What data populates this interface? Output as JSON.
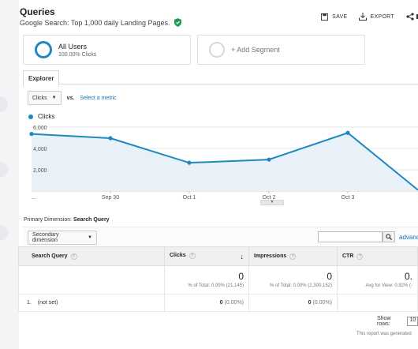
{
  "header": {
    "title": "Queries",
    "subtitle": "Google Search: Top 1,000 daily Landing Pages."
  },
  "toolbar": {
    "save_label": "SAVE",
    "export_label": "EXPORT"
  },
  "segments": {
    "active_name": "All Users",
    "active_sub": "100.00% Clicks",
    "add_label": "+ Add Segment"
  },
  "tabs": {
    "explorer_label": "Explorer"
  },
  "metric": {
    "primary_select": "Clicks",
    "vs_label": "vs.",
    "select_metric_link": "Select a metric",
    "legend_label": "Clicks"
  },
  "chart_data": {
    "type": "line",
    "x": [
      "...",
      "Sep 30",
      "Oct 1",
      "Oct 2",
      "Oct 3",
      ""
    ],
    "y": [
      5350,
      4950,
      2650,
      2950,
      5450,
      100
    ],
    "ytick_labels": [
      "6,000",
      "4,000",
      "2,000"
    ],
    "yticks": [
      6000,
      4000,
      2000
    ],
    "ylim": [
      0,
      6800
    ],
    "series": [
      {
        "name": "Clicks",
        "color": "#2187c0"
      }
    ],
    "grid": true
  },
  "table": {
    "primary_dimension_label": "Primary Dimension:",
    "primary_dimension_value": "Search Query",
    "secondary_dimension_label": "Secondary dimension",
    "advanced_label": "advanc",
    "columns": [
      "Search Query",
      "Clicks",
      "Impressions",
      "CTR"
    ],
    "totals": {
      "clicks": "0",
      "clicks_sub": "% of Total: 0.00% (21,145)",
      "impressions": "0",
      "impressions_sub": "% of Total: 0.00% (2,300,152)",
      "ctr": "0.",
      "ctr_sub": "Avg for View: 0.92% (-"
    },
    "rows": [
      {
        "index": "1.",
        "query": "(not set)",
        "clicks": "0",
        "clicks_pct": "(0.00%)",
        "impressions": "0",
        "impressions_pct": "(0.00%)"
      }
    ],
    "show_rows_label": "Show rows:",
    "show_rows_value": "10",
    "generated_text": "This report was generated"
  }
}
